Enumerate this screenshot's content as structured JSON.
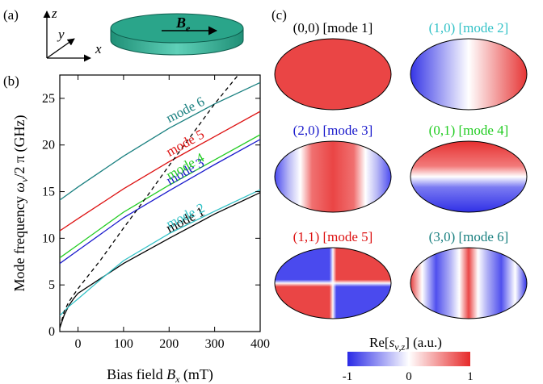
{
  "panel_labels": {
    "a": "(a)",
    "b": "(b)",
    "c": "(c)"
  },
  "schematic": {
    "axes": {
      "z": "z",
      "y": "y",
      "x": "x"
    },
    "field_label": "B",
    "field_subscript": "e",
    "disk_color": "#2aa58a"
  },
  "chart_data": {
    "type": "line",
    "xlabel_main": "Bias field ",
    "xlabel_sym": "B",
    "xlabel_sub": "x",
    "xlabel_unit": " (mT)",
    "ylabel_main": "Mode frequency ",
    "ylabel_sym": "ω",
    "ylabel_sub": "ν",
    "ylabel_rest": "/2 π (GHz)",
    "xlim": [
      -40,
      400
    ],
    "ylim": [
      0,
      27.5
    ],
    "xticks": [
      0,
      100,
      200,
      300,
      400
    ],
    "yticks": [
      0,
      5,
      10,
      15,
      20,
      25
    ],
    "series": [
      {
        "name": "mode 1",
        "color": "#000000",
        "x": [
          -40,
          -30,
          -20,
          -10,
          0,
          50,
          100,
          200,
          300,
          400
        ],
        "y": [
          0.4,
          1.8,
          2.8,
          3.5,
          4.1,
          5.7,
          7.3,
          10.0,
          12.6,
          14.9
        ]
      },
      {
        "name": "mode 2",
        "color": "#33c2c7",
        "x": [
          -40,
          -20,
          0,
          50,
          100,
          200,
          300,
          400
        ],
        "y": [
          1.7,
          2.7,
          3.5,
          5.6,
          7.6,
          10.5,
          12.9,
          15.2
        ]
      },
      {
        "name": "mode 3",
        "color": "#1a1acc",
        "x": [
          -40,
          0,
          100,
          200,
          300,
          400
        ],
        "y": [
          7.3,
          8.7,
          12.2,
          15.1,
          17.9,
          20.6
        ]
      },
      {
        "name": "mode 4",
        "color": "#22cc22",
        "x": [
          -40,
          0,
          100,
          200,
          300,
          400
        ],
        "y": [
          7.9,
          9.3,
          12.8,
          15.7,
          18.4,
          21.1
        ]
      },
      {
        "name": "mode 5",
        "color": "#dd1111",
        "x": [
          -40,
          0,
          100,
          200,
          300,
          400
        ],
        "y": [
          10.8,
          12.1,
          15.3,
          18.2,
          20.9,
          23.6
        ]
      },
      {
        "name": "mode 6",
        "color": "#1a8080",
        "x": [
          -40,
          0,
          100,
          200,
          300,
          400
        ],
        "y": [
          14.1,
          15.5,
          18.8,
          21.8,
          24.4,
          26.7
        ]
      },
      {
        "name": "",
        "color": "#000000",
        "dashed": true,
        "x": [
          -40,
          -30,
          -20,
          0,
          50,
          100,
          150,
          200,
          250,
          300,
          350,
          380
        ],
        "y": [
          0.4,
          2.2,
          3.2,
          4.6,
          7.7,
          11.1,
          14.4,
          17.8,
          21.1,
          24.4,
          27.4,
          29.2
        ]
      }
    ]
  },
  "mode_maps": [
    {
      "title": "(0,0) [mode 1]",
      "color": "#000000",
      "type": "uniform"
    },
    {
      "title": "(1,0) [mode 2]",
      "color": "#33c2c7",
      "type": "m10"
    },
    {
      "title": "(2,0) [mode 3]",
      "color": "#1a1acc",
      "type": "m20"
    },
    {
      "title": "(0,1) [mode 4]",
      "color": "#22cc22",
      "type": "m01"
    },
    {
      "title": "(1,1) [mode 5]",
      "color": "#dd1111",
      "type": "m11"
    },
    {
      "title": "(3,0) [mode 6]",
      "color": "#1a8080",
      "type": "m30"
    }
  ],
  "colorbar": {
    "label_main": "Re[",
    "label_sym": "s",
    "label_sub": "ν,z",
    "label_rest": "] (a.u.)",
    "ticks": [
      "-1",
      "0",
      "1"
    ]
  }
}
